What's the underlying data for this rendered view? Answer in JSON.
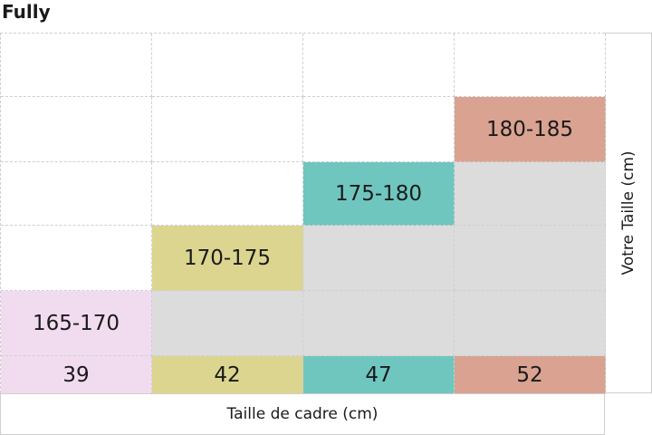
{
  "chart_data": {
    "type": "table",
    "title": "Fully",
    "xlabel": "Taille de cadre (cm)",
    "ylabel": "Votre Taille (cm)",
    "categories": [
      "39",
      "42",
      "47",
      "52"
    ],
    "rows": [
      "",
      "180-185",
      "175-180",
      "170-175",
      "165-170"
    ],
    "values": [
      "165-170",
      "170-175",
      "175-180",
      "180-185"
    ],
    "colors": {
      "39": "#f1dcef",
      "42": "#dcd590",
      "47": "#6fc6bf",
      "52": "#d9a291",
      "fill": "#dcdcdc"
    }
  }
}
